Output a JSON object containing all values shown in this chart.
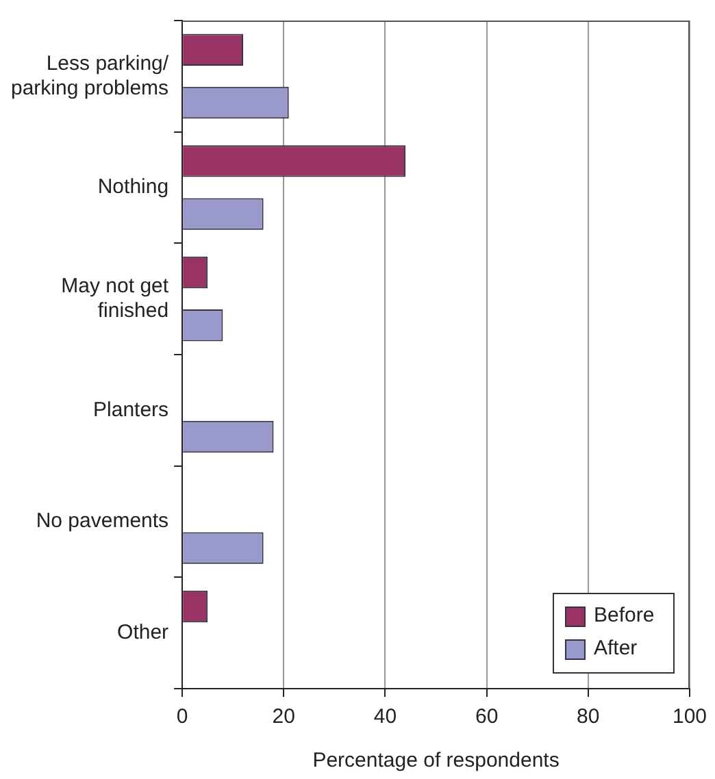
{
  "chart_data": {
    "type": "bar",
    "orientation": "horizontal",
    "xlabel": "Percentage of respondents",
    "categories": [
      "Less parking/ parking problems",
      "Nothing",
      "May not get finished",
      "Planters",
      "No pavements",
      "Other"
    ],
    "series": [
      {
        "name": "Before",
        "color": "#993366",
        "values": [
          12,
          44,
          5,
          null,
          null,
          5
        ]
      },
      {
        "name": "After",
        "color": "#9999cc",
        "values": [
          21,
          16,
          8,
          18,
          16,
          null
        ]
      }
    ],
    "xlim": [
      0,
      100
    ],
    "xticks": [
      0,
      20,
      40,
      60,
      80,
      100
    ],
    "grid": "x",
    "legend": "bottom right"
  }
}
